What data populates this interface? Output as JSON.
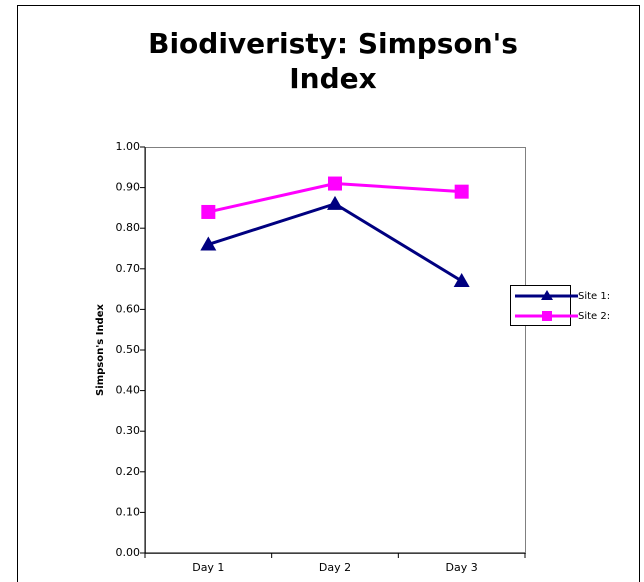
{
  "chart_data": {
    "type": "line",
    "title": "Biodiveristy: Simpson's Index",
    "y_label": "Simpson's Index",
    "categories": [
      "Day 1",
      "Day 2",
      "Day 3"
    ],
    "series": [
      {
        "name": "Site 1:",
        "color": "#000080",
        "marker": "triangle",
        "values": [
          0.76,
          0.86,
          0.67
        ]
      },
      {
        "name": "Site 2:",
        "color": "#ff00ff",
        "marker": "square",
        "values": [
          0.84,
          0.91,
          0.89
        ]
      }
    ],
    "ylim": [
      0,
      1
    ],
    "yticks": [
      {
        "value": 0,
        "label": "0.00"
      },
      {
        "value": 0.1,
        "label": "0.10"
      },
      {
        "value": 0.2,
        "label": "0.20"
      },
      {
        "value": 0.3,
        "label": "0.30"
      },
      {
        "value": 0.4,
        "label": "0.40"
      },
      {
        "value": 0.5,
        "label": "0.50"
      },
      {
        "value": 0.6,
        "label": "0.60"
      },
      {
        "value": 0.7,
        "label": "0.70"
      },
      {
        "value": 0.8,
        "label": "0.80"
      },
      {
        "value": 0.9,
        "label": "0.90"
      },
      {
        "value": 1,
        "label": "1.00"
      }
    ],
    "legend": "right"
  }
}
